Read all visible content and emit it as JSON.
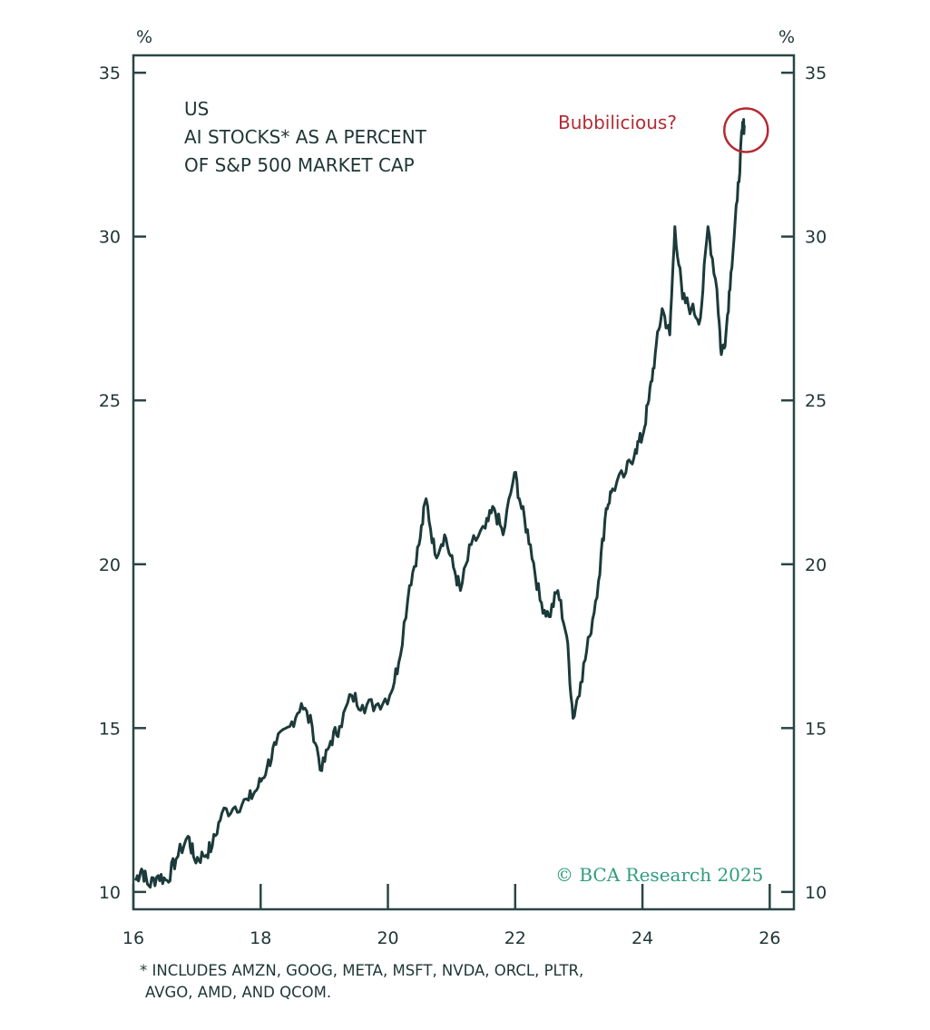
{
  "chart_data": {
    "type": "line",
    "title_lines": [
      "US",
      "AI STOCKS* AS A PERCENT",
      "OF S&P 500 MARKET CAP"
    ],
    "ylabel_left": "%",
    "ylabel_right": "%",
    "xlabel": "",
    "xlim": [
      16,
      26.38
    ],
    "ylim": [
      9.47,
      35.53
    ],
    "x_ticks": [
      16,
      18,
      20,
      22,
      24,
      26
    ],
    "x_tick_labels": [
      "16",
      "18",
      "20",
      "22",
      "24",
      "26"
    ],
    "y_ticks": [
      10,
      15,
      20,
      25,
      30,
      35
    ],
    "y_tick_labels": [
      "10",
      "15",
      "20",
      "25",
      "30",
      "35"
    ],
    "grid": false,
    "annotation": {
      "text": "Bubbilicious?",
      "x": 25.6,
      "y": 33.3
    },
    "watermark": "© BCA Research 2025",
    "footnote_lines": [
      "* INCLUDES AMZN, GOOG, META, MSFT, NVDA, ORCL, PLTR,",
      "AVGO, AMD, AND QCOM."
    ],
    "colors": {
      "line": "#1c3a3a",
      "annotation": "#b32a33",
      "watermark": "#2e9d7e",
      "axis": "#2a4545"
    },
    "series": [
      {
        "name": "AI stocks % of S&P 500 market cap",
        "x": [
          16.03,
          16.13,
          16.24,
          16.39,
          16.53,
          16.67,
          16.86,
          16.96,
          17.1,
          17.24,
          17.39,
          17.6,
          17.81,
          17.96,
          18.1,
          18.24,
          18.46,
          18.64,
          18.81,
          18.96,
          19.1,
          19.24,
          19.43,
          19.6,
          19.81,
          20.03,
          20.17,
          20.34,
          20.49,
          20.6,
          20.74,
          20.89,
          21.03,
          21.14,
          21.31,
          21.53,
          21.67,
          21.81,
          21.99,
          22.1,
          22.24,
          22.39,
          22.53,
          22.67,
          22.81,
          22.91,
          23.03,
          23.17,
          23.31,
          23.43,
          23.53,
          23.74,
          23.89,
          24.0,
          24.1,
          24.2,
          24.31,
          24.43,
          24.51,
          24.63,
          24.77,
          24.91,
          25.03,
          25.17,
          25.24,
          25.31,
          25.39,
          25.49,
          25.57,
          25.6
        ],
        "values": [
          10.35,
          10.7,
          10.2,
          10.5,
          10.35,
          11.0,
          11.7,
          11.0,
          11.1,
          11.4,
          12.4,
          12.6,
          12.8,
          13.2,
          13.8,
          14.5,
          15.05,
          15.75,
          15.05,
          13.7,
          14.6,
          15.05,
          16.0,
          15.7,
          15.7,
          16.0,
          17.0,
          19.35,
          20.6,
          22.0,
          20.3,
          20.9,
          19.9,
          19.2,
          20.6,
          21.1,
          21.7,
          20.9,
          22.8,
          21.7,
          20.6,
          18.9,
          18.4,
          19.2,
          17.8,
          15.3,
          16.4,
          17.8,
          19.5,
          21.7,
          22.3,
          22.8,
          23.5,
          23.9,
          25.0,
          26.4,
          27.8,
          27.0,
          30.3,
          28.1,
          27.8,
          27.5,
          30.3,
          28.4,
          26.4,
          27.0,
          28.9,
          31.1,
          33.3,
          33.4
        ]
      }
    ]
  }
}
